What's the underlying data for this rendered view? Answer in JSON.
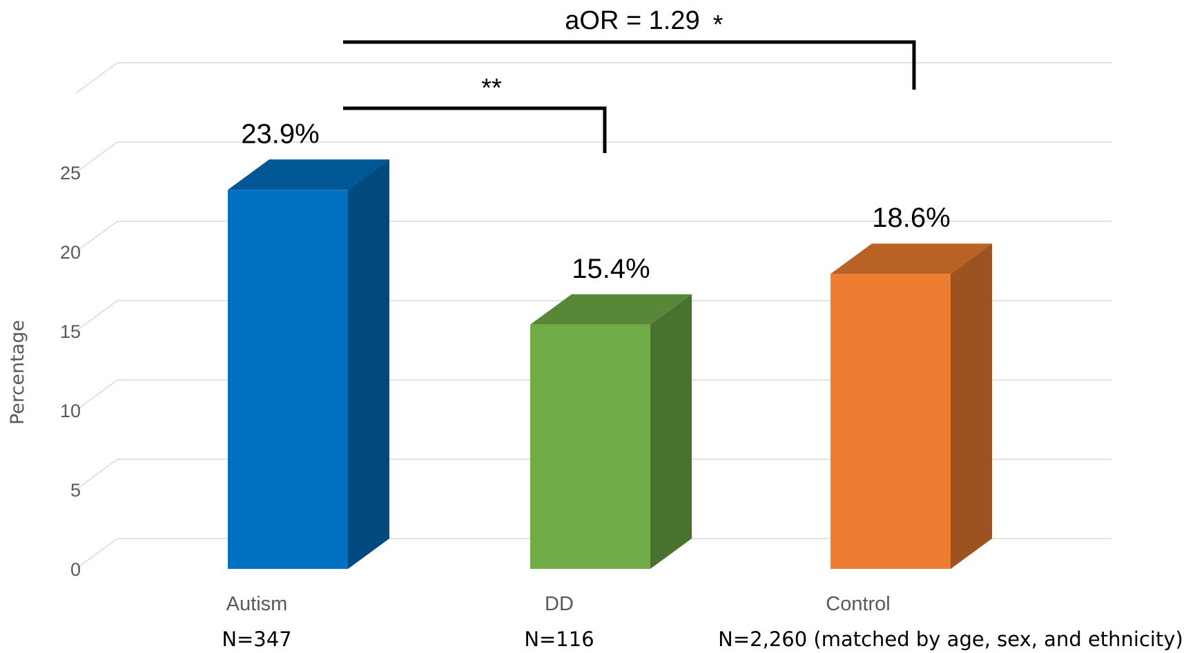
{
  "chart_data": {
    "type": "bar",
    "style": "3d-column",
    "categories": [
      "Autism",
      "DD",
      "Control"
    ],
    "sample_sizes": [
      "N=347",
      "N=116",
      "N=2,260 (matched by age, sex, and ethnicity)"
    ],
    "values": [
      23.9,
      15.4,
      18.6
    ],
    "data_labels": [
      "23.9%",
      "15.4%",
      "18.6%"
    ],
    "colors": [
      "#0070C0",
      "#70AD47",
      "#ED7D31"
    ],
    "ylabel": "Percentage",
    "ylim": [
      0,
      25
    ],
    "yticks": [
      0,
      5,
      10,
      15,
      20,
      25
    ],
    "grid": true,
    "comparisons": [
      {
        "from": "Autism",
        "to": "DD",
        "label": "**"
      },
      {
        "from": "Autism",
        "to": "Control",
        "label": "aOR = 1.29",
        "marker": "*"
      }
    ]
  }
}
